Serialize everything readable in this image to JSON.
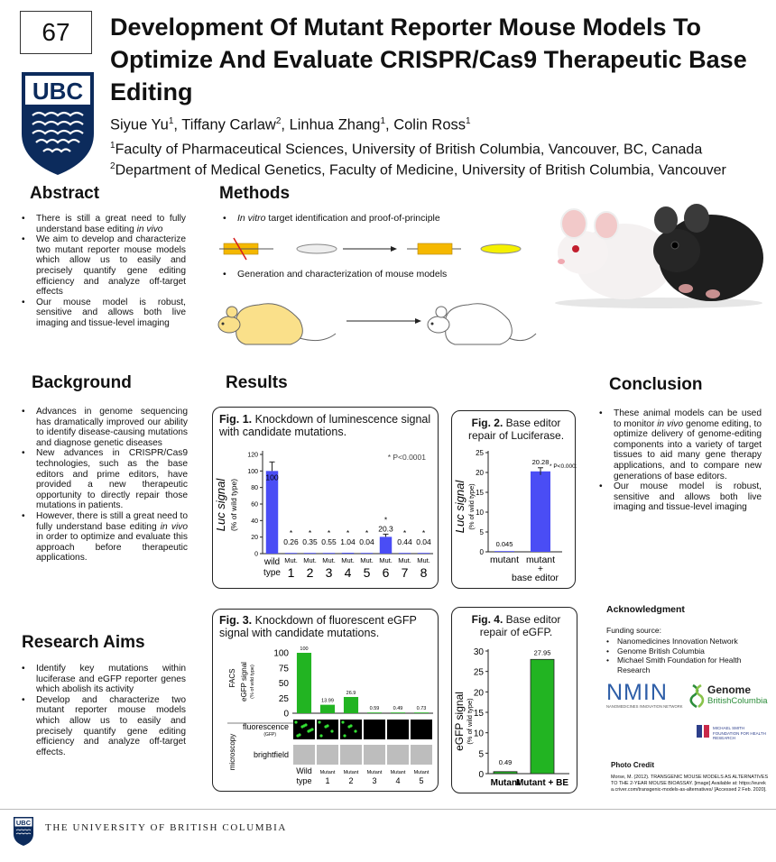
{
  "header": {
    "poster_number": "67",
    "title": "Development Of Mutant Reporter Mouse Models To Optimize And Evaluate CRISPR/Cas9 Therapeutic Base Editing",
    "authors": [
      {
        "name": "Siyue Yu",
        "aff": "1"
      },
      {
        "name": "Tiffany Carlaw",
        "aff": "2"
      },
      {
        "name": "Linhua Zhang",
        "aff": "1"
      },
      {
        "name": "Colin Ross",
        "aff": "1"
      }
    ],
    "affiliations": [
      {
        "num": "1",
        "text": "Faculty of Pharmaceutical Sciences, University of British Columbia, Vancouver, BC, Canada"
      },
      {
        "num": "2",
        "text": "Department of Medical Genetics, Faculty of Medicine, University of British Columbia, Vancouver"
      }
    ],
    "logo_text": "UBC"
  },
  "abstract": {
    "heading": "Abstract",
    "items": [
      "There is still a great need to fully understand base editing in vivo",
      "We aim to develop and characterize two mutant reporter mouse models which allow us to easily and precisely quantify gene editing efficiency and analyze off-target effects",
      "Our mouse model is robust, sensitive and allows both live imaging and tissue-level imaging"
    ]
  },
  "methods": {
    "heading": "Methods",
    "item1_italic": "In vitro",
    "item1_rest": " target identification and proof-of-principle",
    "item2": "Generation and characterization of mouse models"
  },
  "background": {
    "heading": "Background",
    "items": [
      "Advances in genome sequencing has dramatically improved our ability to identify disease-causing mutations and diagnose genetic diseases",
      "New advances in CRISPR/Cas9 technologies, such as the base editors and prime editors, have provided a new therapeutic opportunity to directly repair those mutations in patients.",
      "However, there is still a great need to fully understand base editing in vivo in order to optimize and evaluate this approach before therapeutic applications."
    ]
  },
  "aims": {
    "heading": "Research Aims",
    "items": [
      "Identify key mutations within luciferase and eGFP reporter genes which abolish its activity",
      "Develop and characterize two mutant reporter mouse models which allow us to easily and precisely quantify gene editing efficiency and analyze off-target effects."
    ]
  },
  "results": {
    "heading": "Results"
  },
  "conclusion": {
    "heading": "Conclusion",
    "items": [
      "These animal models can be used to monitor in vivo genome editing, to optimize delivery of genome-editing components into a variety of target tissues to aid many gene therapy applications, and to compare new generations of base editors.",
      "Our mouse model is robust, sensitive and allows both live imaging and tissue-level imaging"
    ]
  },
  "acknowledgment": {
    "heading": "Acknowledgment",
    "funding_label": "Funding source:",
    "sources": [
      "Nanomedicines Innovation Network",
      "Genome British Columbia",
      "Michael Smith Foundation for Health Research"
    ],
    "logo_nmin": "NMIN",
    "logo_nmin_sub": "NANOMEDICINES INNOVATION NETWORK",
    "logo_genome": "Genome",
    "logo_genome_sub": "BritishColumbia",
    "logo_msfhr": "MICHAEL SMITH FOUNDATION FOR HEALTH RESEARCH"
  },
  "photo_credit": {
    "heading": "Photo Credit",
    "text": "Morse, M. (2012). TRANSGENIC MOUSE MODELS AS ALTERNATIVES TO THE 2-YEAR MOUSE BIOASSAY. [image] Available at: https://eureka.criver.com/transgenic-models-as-alternatives/ [Accessed 2 Feb. 2020]."
  },
  "footer": {
    "university": "THE UNIVERSITY OF BRITISH COLUMBIA",
    "logo_text": "UBC"
  },
  "chart_data": [
    {
      "type": "bar",
      "fig_label": "Fig. 1.",
      "title": "Knockdown of luminescence signal with candidate mutations.",
      "ylabel": "Luc signal",
      "ylabel_sub": "(% of wild type)",
      "categories": [
        "wild type",
        "Mut. 1",
        "Mut. 2",
        "Mut. 3",
        "Mut. 4",
        "Mut. 5",
        "Mut. 6",
        "Mut. 7",
        "Mut. 8"
      ],
      "values": [
        100,
        0.26,
        0.35,
        0.55,
        1.04,
        0.04,
        20.3,
        0.44,
        0.04
      ],
      "labels": [
        "100",
        "0.26",
        "0.35",
        "0.55",
        "1.04",
        "0.04",
        "20.3",
        "0.44",
        "0.04"
      ],
      "significance": [
        "",
        "*",
        "*",
        "*",
        "*",
        "*",
        "*",
        "*",
        "*"
      ],
      "legend": "* P<0.0001",
      "ylim": [
        0,
        120
      ],
      "yticks": [
        0,
        20,
        40,
        60,
        80,
        100,
        120
      ],
      "color": "#4a4df5"
    },
    {
      "type": "bar",
      "fig_label": "Fig. 2.",
      "title": "Base editor repair of Luciferase.",
      "ylabel": "Luc signal",
      "ylabel_sub": "(% of wild type)",
      "categories": [
        "mutant",
        "mutant + base editor"
      ],
      "values": [
        0.045,
        20.28
      ],
      "labels": [
        "0.045",
        "20.28"
      ],
      "legend": "* P<0.0001",
      "ylim": [
        0,
        25
      ],
      "yticks": [
        0,
        5,
        10,
        15,
        20,
        25
      ],
      "color": "#4a4df5"
    },
    {
      "type": "bar",
      "fig_label": "Fig. 3.",
      "title": "Knockdown of fluorescent eGFP signal with candidate mutations.",
      "ylabel": "eGFP signal",
      "ylabel_sub": "(% of wild type)",
      "side_labels": [
        "FACS",
        "microscopy"
      ],
      "row_labels": [
        "fluorescence",
        "(GFP)",
        "brightfield"
      ],
      "categories": [
        "Wild type",
        "Mutant 1",
        "Mutant 2",
        "Mutant 3",
        "Mutant 4",
        "Mutant 5"
      ],
      "values": [
        100,
        13.99,
        26.9,
        0.59,
        0.49,
        0.73
      ],
      "labels": [
        "100",
        "13.99",
        "26.9",
        "0.59",
        "0.49",
        "0.73"
      ],
      "ylim": [
        0,
        100
      ],
      "yticks": [
        0,
        25,
        50,
        75,
        100
      ],
      "color": "#22b422"
    },
    {
      "type": "bar",
      "fig_label": "Fig. 4.",
      "title": "Base editor repair of eGFP.",
      "ylabel": "eGFP signal",
      "ylabel_sub": "(% of wild type)",
      "categories": [
        "Mutant",
        "Mutant + BE"
      ],
      "values": [
        0.49,
        27.95
      ],
      "labels": [
        "0.49",
        "27.95"
      ],
      "ylim": [
        0,
        30
      ],
      "yticks": [
        0,
        5,
        10,
        15,
        20,
        25,
        30
      ],
      "color": "#22b422"
    }
  ]
}
